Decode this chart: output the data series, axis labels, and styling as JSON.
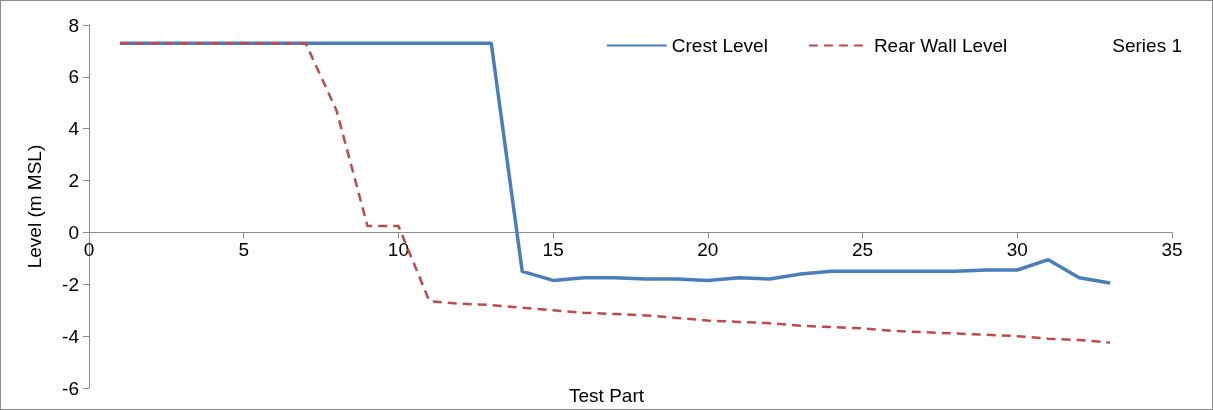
{
  "chart_data": {
    "type": "line",
    "xlabel": "Test Part",
    "ylabel": "Level (m MSL)",
    "x": [
      1,
      2,
      3,
      4,
      5,
      6,
      7,
      8,
      9,
      10,
      11,
      12,
      13,
      14,
      15,
      16,
      17,
      18,
      19,
      20,
      21,
      22,
      23,
      24,
      25,
      26,
      27,
      28,
      29,
      30,
      31,
      32,
      33
    ],
    "series": [
      {
        "name": "Crest Level",
        "color": "#4a7ebb",
        "line_style": "solid",
        "values": [
          7.3,
          7.3,
          7.3,
          7.3,
          7.3,
          7.3,
          7.3,
          7.3,
          7.3,
          7.3,
          7.3,
          7.3,
          7.3,
          -1.5,
          -1.85,
          -1.75,
          -1.75,
          -1.8,
          -1.8,
          -1.85,
          -1.75,
          -1.8,
          -1.6,
          -1.5,
          -1.5,
          -1.5,
          -1.5,
          -1.5,
          -1.45,
          -1.45,
          -1.05,
          -1.75,
          -1.95
        ]
      },
      {
        "name": "Rear Wall Level",
        "color": "#be4b48",
        "line_style": "dashed",
        "values": [
          7.3,
          7.3,
          7.3,
          7.3,
          7.3,
          7.3,
          7.3,
          4.7,
          0.25,
          0.25,
          -2.65,
          -2.75,
          -2.8,
          -2.9,
          -3.0,
          -3.1,
          -3.15,
          -3.2,
          -3.3,
          -3.4,
          -3.45,
          -3.5,
          -3.6,
          -3.65,
          -3.7,
          -3.8,
          -3.85,
          -3.9,
          -3.95,
          -4.0,
          -4.1,
          -4.15,
          -4.25
        ]
      },
      {
        "name": "Series 1",
        "values": [
          null,
          null,
          null,
          null,
          null,
          null,
          null,
          null,
          null,
          null,
          null,
          null,
          null,
          null,
          null,
          null,
          null,
          null,
          null,
          null,
          null,
          null,
          null,
          null,
          null,
          null,
          null,
          null,
          null,
          null,
          null,
          null,
          null
        ]
      }
    ],
    "xlim": [
      0,
      35
    ],
    "xticks": [
      0,
      5,
      10,
      15,
      20,
      25,
      30,
      35
    ],
    "ylim": [
      -6,
      8
    ],
    "yticks": [
      -6,
      -4,
      -2,
      0,
      2,
      4,
      6,
      8
    ],
    "grid": false,
    "legend": "top right",
    "marker": "none"
  }
}
